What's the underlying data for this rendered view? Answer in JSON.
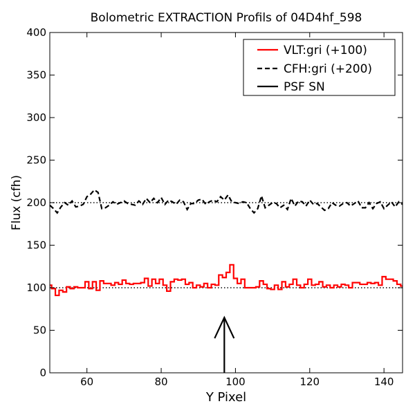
{
  "chart_data": {
    "type": "line",
    "title": "Bolometric EXTRACTION Profils of 04D4hf_598",
    "title_color": "#ff0000",
    "xlabel": "Y Pixel",
    "ylabel": "Flux (cfh)",
    "xlim": [
      50,
      145
    ],
    "ylim": [
      0,
      400
    ],
    "xticks": [
      60,
      80,
      100,
      120,
      140
    ],
    "yticks": [
      0,
      50,
      100,
      150,
      200,
      250,
      300,
      350,
      400
    ],
    "grid": false,
    "legend_position": "top-right",
    "reference_lines": [
      {
        "y": 100,
        "style": "dotted",
        "color": "#000000"
      },
      {
        "y": 200,
        "style": "dotted",
        "color": "#000000"
      }
    ],
    "series": [
      {
        "name": "VLT:gri (+100)",
        "style": "steps",
        "color": "#ff0000",
        "x": [
          50,
          51,
          52,
          53,
          54,
          55,
          56,
          57,
          58,
          59,
          60,
          61,
          62,
          63,
          64,
          65,
          66,
          67,
          68,
          69,
          70,
          71,
          72,
          73,
          74,
          75,
          76,
          77,
          78,
          79,
          80,
          81,
          82,
          83,
          84,
          85,
          86,
          87,
          88,
          89,
          90,
          91,
          92,
          93,
          94,
          95,
          96,
          97,
          98,
          99,
          100,
          101,
          102,
          103,
          104,
          105,
          106,
          107,
          108,
          109,
          110,
          111,
          112,
          113,
          114,
          115,
          116,
          117,
          118,
          119,
          120,
          121,
          122,
          123,
          124,
          125,
          126,
          127,
          128,
          129,
          130,
          131,
          132,
          133,
          134,
          135,
          136,
          137,
          138,
          139,
          140,
          141,
          142,
          143,
          144,
          145
        ],
        "values": [
          103,
          99,
          91,
          97,
          95,
          101,
          99,
          101,
          100,
          100,
          107,
          99,
          107,
          97,
          108,
          105,
          105,
          103,
          106,
          104,
          109,
          105,
          104,
          105,
          105,
          106,
          111,
          102,
          110,
          105,
          110,
          103,
          96,
          107,
          110,
          109,
          110,
          104,
          106,
          100,
          103,
          101,
          105,
          100,
          104,
          103,
          115,
          112,
          118,
          127,
          111,
          105,
          110,
          100,
          100,
          100,
          101,
          108,
          104,
          99,
          98,
          103,
          98,
          107,
          101,
          104,
          110,
          103,
          100,
          104,
          110,
          103,
          104,
          107,
          101,
          103,
          100,
          103,
          101,
          104,
          103,
          100,
          106,
          106,
          104,
          104,
          106,
          105,
          106,
          103,
          113,
          110,
          110,
          108,
          104,
          102
        ],
        "marker_x": 97
      },
      {
        "name": "CFH:gri (+200)",
        "style": "dashed",
        "color": "#000000",
        "x": [
          50,
          51,
          52,
          53,
          54,
          55,
          56,
          57,
          58,
          59,
          60,
          61,
          62,
          63,
          64,
          65,
          66,
          67,
          68,
          69,
          70,
          71,
          72,
          73,
          74,
          75,
          76,
          77,
          78,
          79,
          80,
          81,
          82,
          83,
          84,
          85,
          86,
          87,
          88,
          89,
          90,
          91,
          92,
          93,
          94,
          95,
          96,
          97,
          98,
          99,
          100,
          101,
          102,
          103,
          104,
          105,
          106,
          107,
          108,
          109,
          110,
          111,
          112,
          113,
          114,
          115,
          116,
          117,
          118,
          119,
          120,
          121,
          122,
          123,
          124,
          125,
          126,
          127,
          128,
          129,
          130,
          131,
          132,
          133,
          134,
          135,
          136,
          137,
          138,
          139,
          140,
          141,
          142,
          143,
          144,
          145
        ],
        "values": [
          197,
          193,
          188,
          195,
          200,
          197,
          202,
          195,
          196,
          198,
          207,
          210,
          215,
          212,
          193,
          194,
          197,
          201,
          198,
          200,
          202,
          199,
          198,
          197,
          202,
          198,
          205,
          200,
          205,
          200,
          206,
          198,
          203,
          201,
          198,
          203,
          201,
          192,
          199,
          199,
          203,
          204,
          198,
          201,
          203,
          201,
          207,
          203,
          209,
          201,
          200,
          199,
          201,
          200,
          193,
          188,
          193,
          208,
          194,
          197,
          200,
          199,
          194,
          197,
          192,
          205,
          196,
          202,
          201,
          196,
          203,
          198,
          199,
          195,
          191,
          193,
          200,
          197,
          196,
          199,
          200,
          196,
          199,
          202,
          194,
          194,
          200,
          193,
          199,
          201,
          193,
          197,
          201,
          195,
          201,
          198
        ]
      },
      {
        "name": "PSF SN",
        "style": "arrow",
        "color": "#000000",
        "x": [
          97,
          97
        ],
        "values": [
          0,
          65
        ]
      }
    ]
  }
}
